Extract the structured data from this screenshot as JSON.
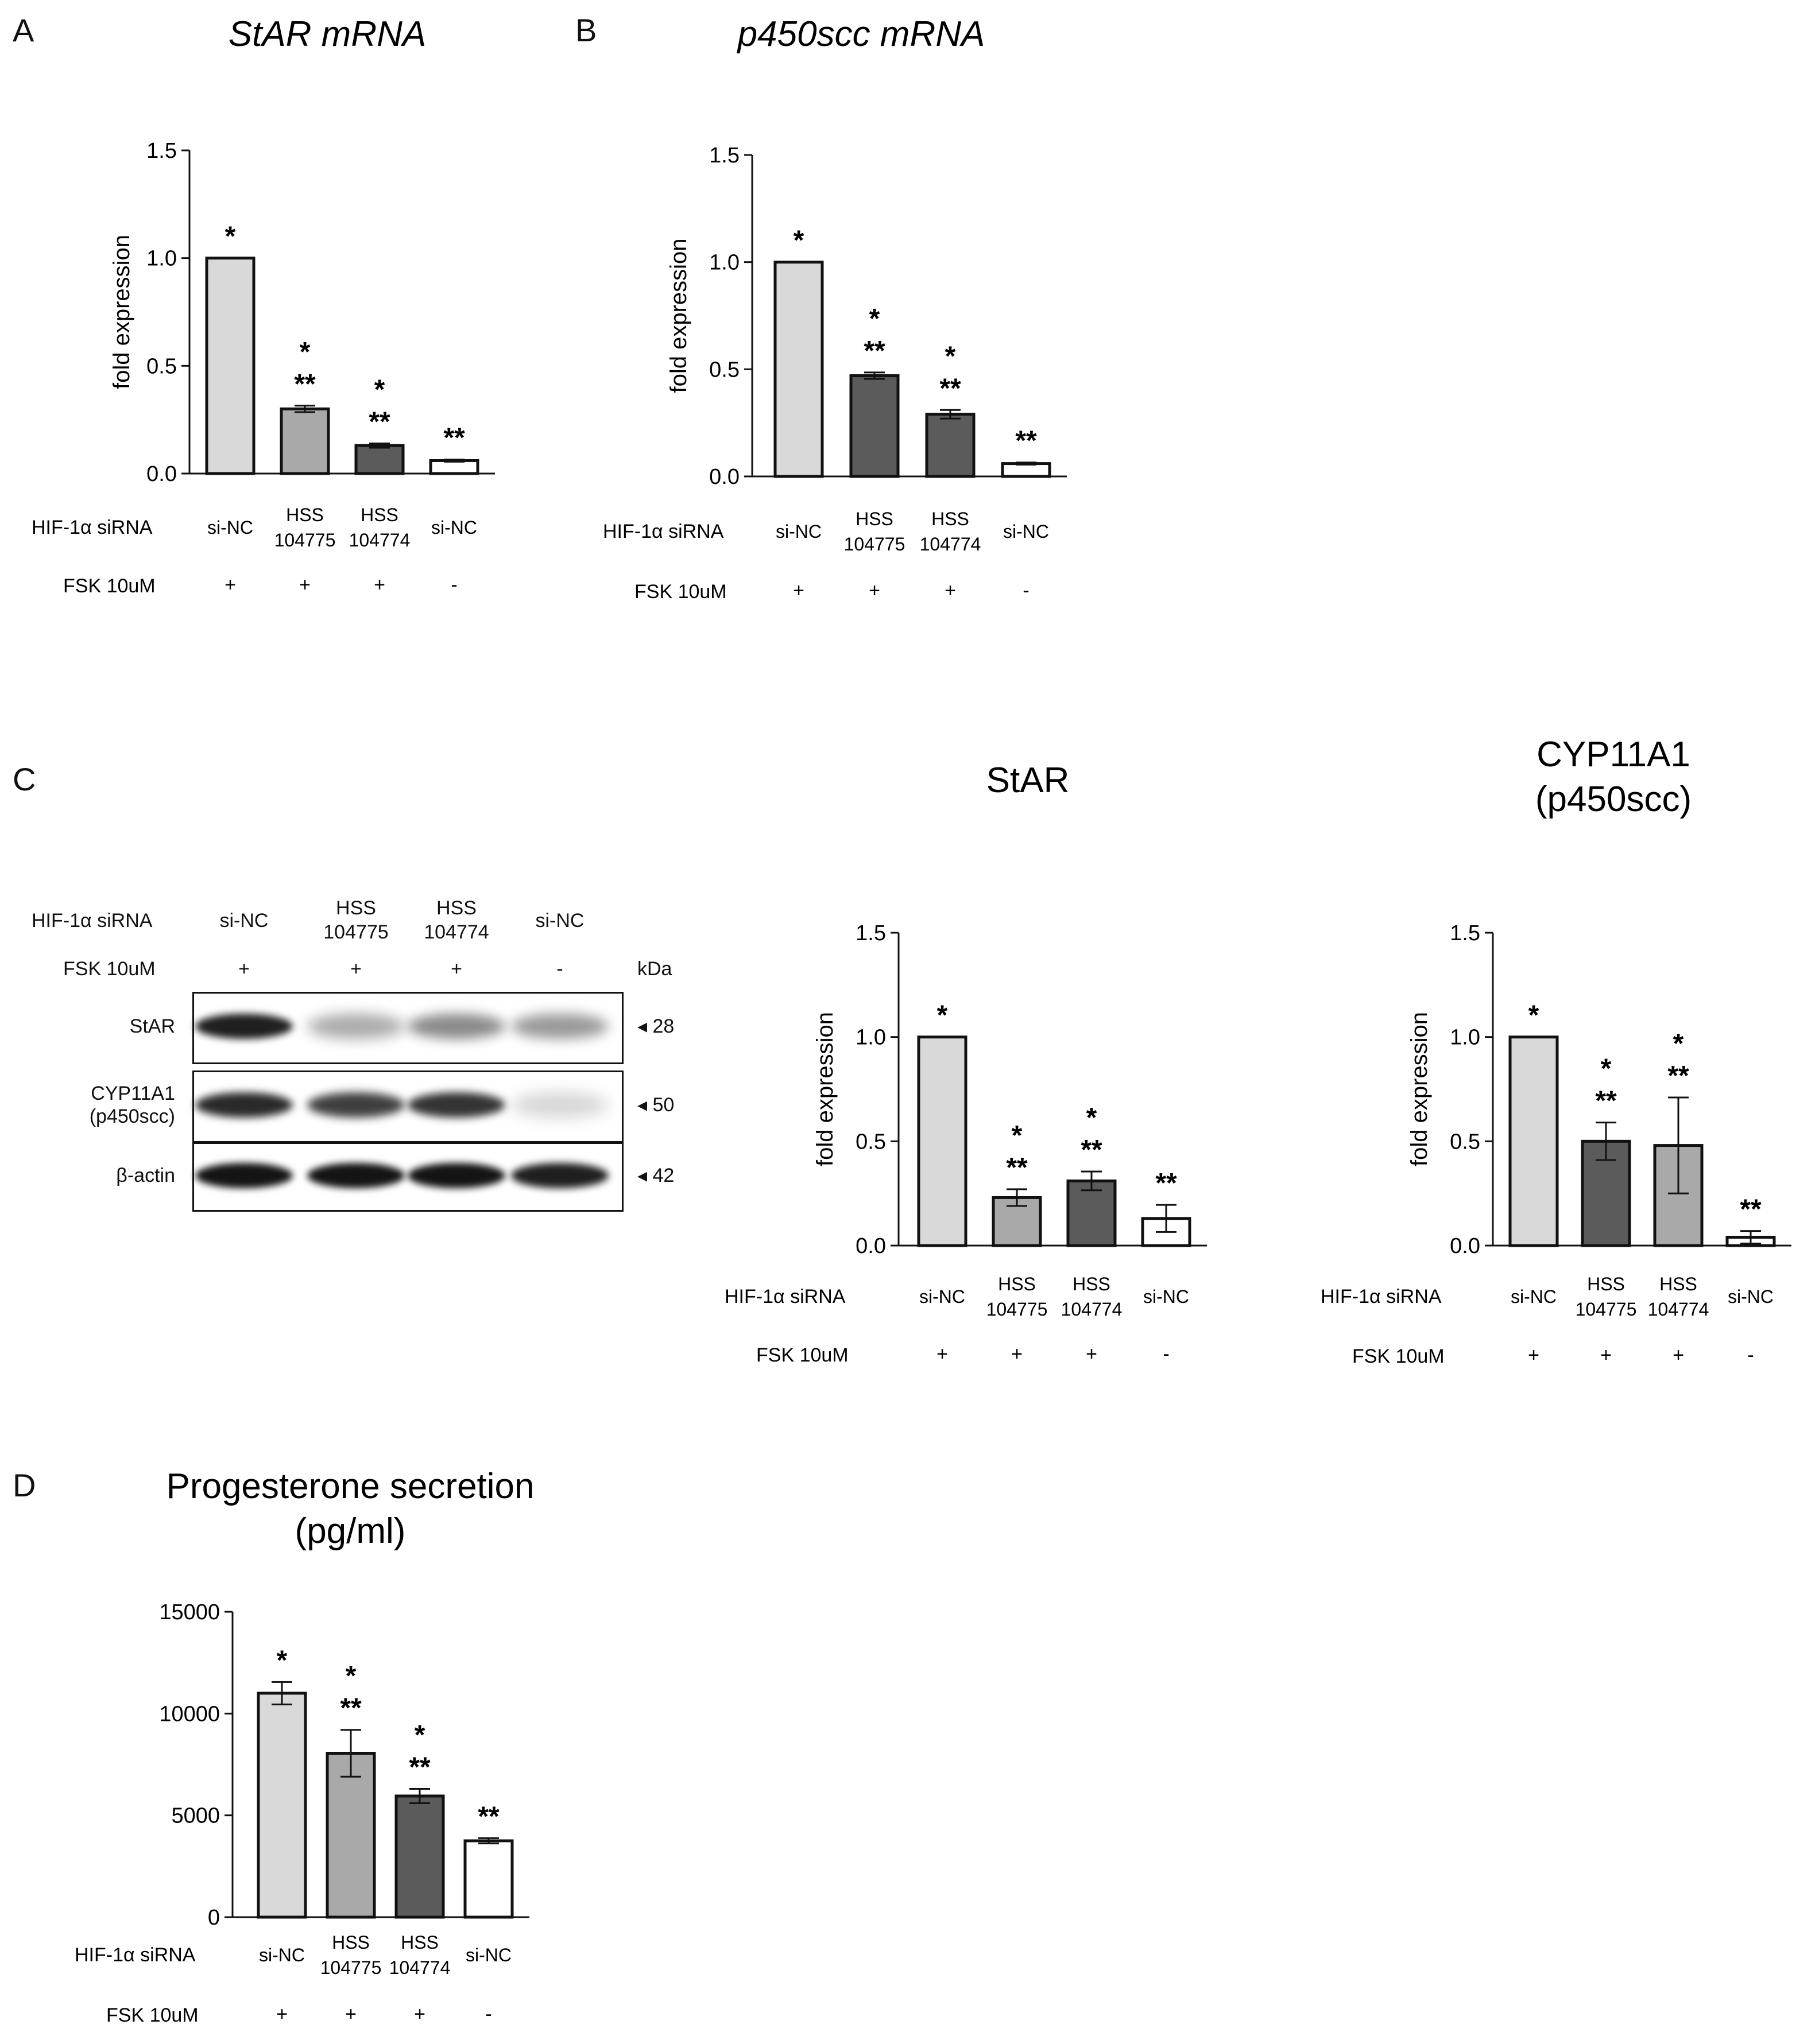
{
  "figure": {
    "panel_letters": [
      "A",
      "B",
      "C",
      "D"
    ],
    "colors": {
      "light": "#d9d9d9",
      "mid": "#a9a9a9",
      "dark": "#5b5b5b",
      "white": "#ffffff",
      "stroke": "#111111"
    }
  },
  "chart_data": [
    {
      "id": "A",
      "type": "bar",
      "title": "StAR mRNA",
      "title_italic": true,
      "ylabel": "fold expression",
      "ylim": [
        0,
        1.5
      ],
      "yticks": [
        "0.0",
        "0.5",
        "1.0",
        "1.5"
      ],
      "ytick_values": [
        0,
        0.5,
        1.0,
        1.5
      ],
      "categories": [
        [
          "si-NC"
        ],
        [
          "HSS",
          "104775"
        ],
        [
          "HSS",
          "104774"
        ],
        [
          "si-NC"
        ]
      ],
      "values": [
        1.0,
        0.3,
        0.13,
        0.06
      ],
      "errors": [
        0,
        0.015,
        0.01,
        0.005
      ],
      "fills": [
        "light",
        "mid",
        "dark",
        "white"
      ],
      "significance": [
        [
          "*"
        ],
        [
          "*",
          "**"
        ],
        [
          "*",
          "**"
        ],
        [
          "**"
        ]
      ],
      "row_labels": {
        "sirna": "HIF-1α siRNA",
        "fsk": "FSK 10uM"
      },
      "fsk": [
        "+",
        "+",
        "+",
        "-"
      ]
    },
    {
      "id": "B",
      "type": "bar",
      "title": "p450scc mRNA",
      "title_italic": true,
      "ylabel": "fold expression",
      "ylim": [
        0,
        1.5
      ],
      "yticks": [
        "0.0",
        "0.5",
        "1.0",
        "1.5"
      ],
      "ytick_values": [
        0,
        0.5,
        1.0,
        1.5
      ],
      "categories": [
        [
          "si-NC"
        ],
        [
          "HSS",
          "104775"
        ],
        [
          "HSS",
          "104774"
        ],
        [
          "si-NC"
        ]
      ],
      "values": [
        1.0,
        0.47,
        0.29,
        0.06
      ],
      "errors": [
        0,
        0.015,
        0.02,
        0.005
      ],
      "fills": [
        "light",
        "dark",
        "dark",
        "white"
      ],
      "significance": [
        [
          "*"
        ],
        [
          "*",
          "**"
        ],
        [
          "*",
          "**"
        ],
        [
          "**"
        ]
      ],
      "row_labels": {
        "sirna": "HIF-1α siRNA",
        "fsk": "FSK 10uM"
      },
      "fsk": [
        "+",
        "+",
        "+",
        "-"
      ]
    },
    {
      "id": "C-StAR",
      "type": "bar",
      "title": "StAR",
      "title_italic": false,
      "ylabel": "fold expression",
      "ylim": [
        0,
        1.5
      ],
      "yticks": [
        "0.0",
        "0.5",
        "1.0",
        "1.5"
      ],
      "ytick_values": [
        0,
        0.5,
        1.0,
        1.5
      ],
      "categories": [
        [
          "si-NC"
        ],
        [
          "HSS",
          "104775"
        ],
        [
          "HSS",
          "104774"
        ],
        [
          "si-NC"
        ]
      ],
      "values": [
        1.0,
        0.23,
        0.31,
        0.13
      ],
      "errors": [
        0,
        0.04,
        0.045,
        0.065
      ],
      "fills": [
        "light",
        "mid",
        "dark",
        "white"
      ],
      "significance": [
        [
          "*"
        ],
        [
          "*",
          "**"
        ],
        [
          "*",
          "**"
        ],
        [
          "**"
        ]
      ],
      "row_labels": {
        "sirna": "HIF-1α siRNA",
        "fsk": "FSK 10uM"
      },
      "fsk": [
        "+",
        "+",
        "+",
        "-"
      ]
    },
    {
      "id": "C-CYP11A1",
      "type": "bar",
      "title": "CYP11A1",
      "subtitle": "(p450scc)",
      "title_italic": false,
      "ylabel": "fold expression",
      "ylim": [
        0,
        1.5
      ],
      "yticks": [
        "0.0",
        "0.5",
        "1.0",
        "1.5"
      ],
      "ytick_values": [
        0,
        0.5,
        1.0,
        1.5
      ],
      "categories": [
        [
          "si-NC"
        ],
        [
          "HSS",
          "104775"
        ],
        [
          "HSS",
          "104774"
        ],
        [
          "si-NC"
        ]
      ],
      "values": [
        1.0,
        0.5,
        0.48,
        0.04
      ],
      "errors": [
        0,
        0.09,
        0.23,
        0.03
      ],
      "fills": [
        "light",
        "dark",
        "mid",
        "white"
      ],
      "significance": [
        [
          "*"
        ],
        [
          "*",
          "**"
        ],
        [
          "*",
          "**"
        ],
        [
          "**"
        ]
      ],
      "row_labels": {
        "sirna": "HIF-1α siRNA",
        "fsk": "FSK 10uM"
      },
      "fsk": [
        "+",
        "+",
        "+",
        "-"
      ]
    },
    {
      "id": "D",
      "type": "bar",
      "title": "Progesterone secretion",
      "subtitle": "(pg/ml)",
      "title_italic": false,
      "ylabel": "",
      "ylim": [
        0,
        15000
      ],
      "yticks": [
        "0",
        "5000",
        "10000",
        "15000"
      ],
      "ytick_values": [
        0,
        5000,
        10000,
        15000
      ],
      "categories": [
        [
          "si-NC"
        ],
        [
          "HSS",
          "104775"
        ],
        [
          "HSS",
          "104774"
        ],
        [
          "si-NC"
        ]
      ],
      "values": [
        11000,
        8050,
        5950,
        3750
      ],
      "errors": [
        550,
        1150,
        350,
        130
      ],
      "fills": [
        "light",
        "mid",
        "dark",
        "white"
      ],
      "significance": [
        [
          "*"
        ],
        [
          "*",
          "**"
        ],
        [
          "*",
          "**"
        ],
        [
          "**"
        ]
      ],
      "row_labels": {
        "sirna": "HIF-1α siRNA",
        "fsk": "FSK 10uM"
      },
      "fsk": [
        "+",
        "+",
        "+",
        "-"
      ]
    }
  ],
  "western_blot": {
    "sirna_label": "HIF-1α siRNA",
    "fsk_label": "FSK 10uM",
    "lanes": [
      [
        "si-NC"
      ],
      [
        "HSS",
        "104775"
      ],
      [
        "HSS",
        "104774"
      ],
      [
        "si-NC"
      ]
    ],
    "fsk": [
      "+",
      "+",
      "+",
      "-"
    ],
    "kda_label": "kDa",
    "rows": [
      {
        "label": [
          "StAR"
        ],
        "kda": "◂ 28",
        "intensity": [
          0.95,
          0.3,
          0.45,
          0.38
        ]
      },
      {
        "label": [
          "CYP11A1",
          "(p450scc)"
        ],
        "kda": "◂ 50",
        "intensity": [
          0.9,
          0.8,
          0.85,
          0.1
        ]
      },
      {
        "label": [
          "β-actin"
        ],
        "kda": "◂ 42",
        "intensity": [
          1.0,
          1.0,
          1.0,
          0.95
        ]
      }
    ]
  }
}
